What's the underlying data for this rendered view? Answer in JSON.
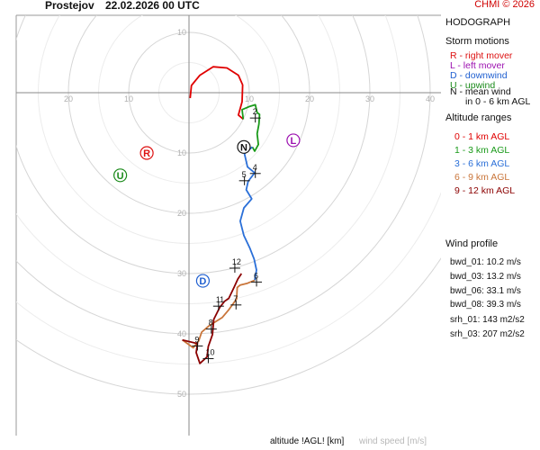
{
  "header": {
    "location": "Prostejov",
    "datetime": "22.02.2026 00 UTC",
    "brand": "CHMI © 2026"
  },
  "panel": {
    "title": "HODOGRAPH",
    "storm_motions": {
      "heading": "Storm motions",
      "items": [
        {
          "text": "R - right mover",
          "color": "#dd1010"
        },
        {
          "text": "L - left mover",
          "color": "#9c10b0"
        },
        {
          "text": "D - downwind",
          "color": "#1f5fd0"
        },
        {
          "text": "U - upwind",
          "color": "#1a8a1a"
        },
        {
          "text": "N - mean wind",
          "color": "#111111"
        },
        {
          "text": "in 0 - 6 km AGL",
          "color": "#111111"
        }
      ]
    },
    "altitude_ranges": {
      "heading": "Altitude ranges",
      "items": [
        {
          "text": "0 - 1 km AGL",
          "color": "#e00000"
        },
        {
          "text": "1 - 3 km AGL",
          "color": "#1a9a1a"
        },
        {
          "text": "3 - 6 km AGL",
          "color": "#2a6fd8"
        },
        {
          "text": "6 - 9 km AGL",
          "color": "#c9753a"
        },
        {
          "text": "9 - 12 km AGL",
          "color": "#8b0000"
        }
      ]
    },
    "wind_profile": {
      "heading": "Wind profile",
      "items": [
        "bwd_01: 10.2 m/s",
        "bwd_03: 13.2 m/s",
        "bwd_06: 33.1 m/s",
        "bwd_08: 39.3 m/s",
        "srh_01: 143 m2/s2",
        "srh_03: 207 m2/s2"
      ]
    }
  },
  "footer": {
    "altitude_label": "altitude !AGL! [km]",
    "windspeed_label": "wind speed [m/s]"
  },
  "chart_data": {
    "type": "hodograph",
    "rings_ms": [
      10,
      20,
      30,
      40,
      50
    ],
    "tick_labels": {
      "x_axis": [
        "20",
        "10",
        "10",
        "20",
        "30",
        "40"
      ],
      "y_axis": [
        "10",
        "10",
        "20",
        "30",
        "40",
        "50"
      ]
    },
    "segments": [
      {
        "range": "0 - 1 km AGL",
        "color": "#e00000",
        "points": [
          [
            0.2,
            -0.9
          ],
          [
            0.4,
            1.2
          ],
          [
            1.8,
            2.9
          ],
          [
            4.0,
            4.3
          ],
          [
            6.3,
            4.1
          ],
          [
            8.2,
            2.9
          ],
          [
            8.9,
            1.3
          ],
          [
            8.8,
            -1.5
          ],
          [
            8.2,
            -3.7
          ],
          [
            9.0,
            -4.4
          ]
        ]
      },
      {
        "range": "1 - 3 km AGL",
        "color": "#1a9a1a",
        "points": [
          [
            9.0,
            -4.4
          ],
          [
            8.8,
            -2.8
          ],
          [
            10.0,
            -2.3
          ],
          [
            11.0,
            -2.0
          ],
          [
            11.3,
            -3.3
          ],
          [
            11.7,
            -3.6
          ],
          [
            11.6,
            -5.2
          ],
          [
            11.3,
            -6.8
          ],
          [
            11.5,
            -8.6
          ],
          [
            10.9,
            -9.7
          ],
          [
            10.5,
            -9.0
          ]
        ]
      },
      {
        "range": "3 - 6 km AGL",
        "color": "#2a6fd8",
        "points": [
          [
            10.5,
            -9.0
          ],
          [
            9.2,
            -10.1
          ],
          [
            9.7,
            -12.3
          ],
          [
            10.9,
            -13.3
          ],
          [
            9.8,
            -14.7
          ],
          [
            9.5,
            -16.1
          ],
          [
            10.4,
            -17.6
          ],
          [
            9.1,
            -19.1
          ],
          [
            8.5,
            -21.3
          ],
          [
            9.1,
            -23.7
          ],
          [
            10.1,
            -25.8
          ],
          [
            10.8,
            -27.6
          ],
          [
            11.2,
            -29.4
          ],
          [
            10.9,
            -31.1
          ]
        ]
      },
      {
        "range": "6 - 9 km AGL",
        "color": "#c9753a",
        "points": [
          [
            10.9,
            -31.1
          ],
          [
            9.7,
            -31.6
          ],
          [
            8.5,
            -31.9
          ],
          [
            8.0,
            -32.3
          ],
          [
            7.9,
            -34.2
          ],
          [
            6.6,
            -36.0
          ],
          [
            5.5,
            -37.3
          ],
          [
            3.4,
            -38.6
          ],
          [
            2.1,
            -39.7
          ],
          [
            1.6,
            -41.2
          ],
          [
            0.7,
            -42.3
          ],
          [
            -1.1,
            -41.0
          ]
        ]
      },
      {
        "range": "9 - 12 km AGL",
        "color": "#8b0000",
        "points": [
          [
            -1.1,
            -41.0
          ],
          [
            1.4,
            -41.6
          ],
          [
            1.2,
            -43.1
          ],
          [
            1.8,
            -44.9
          ],
          [
            3.0,
            -43.8
          ],
          [
            3.2,
            -42.1
          ],
          [
            3.9,
            -40.1
          ],
          [
            4.1,
            -37.6
          ],
          [
            5.1,
            -35.6
          ],
          [
            5.9,
            -34.6
          ],
          [
            6.6,
            -34.1
          ],
          [
            7.5,
            -32.2
          ],
          [
            8.1,
            -30.9
          ],
          [
            8.7,
            -30.0
          ]
        ]
      }
    ],
    "height_marks_km": [
      {
        "label": "2",
        "u": 11.0,
        "v": -4.2
      },
      {
        "label": "4",
        "u": 11.0,
        "v": -13.4
      },
      {
        "label": "5",
        "u": 9.2,
        "v": -14.6
      },
      {
        "label": "6",
        "u": 11.2,
        "v": -31.4
      },
      {
        "label": "7",
        "u": 7.8,
        "v": -35.2
      },
      {
        "label": "8",
        "u": 3.7,
        "v": -39.2
      },
      {
        "label": "9",
        "u": 1.4,
        "v": -42.0
      },
      {
        "label": "10",
        "u": 3.2,
        "v": -44.1
      },
      {
        "label": "11",
        "u": 4.9,
        "v": -35.4
      },
      {
        "label": "12",
        "u": 7.6,
        "v": -29.1
      }
    ],
    "storm_motions": [
      {
        "label": "R",
        "u": -7.0,
        "v": -10.0,
        "color": "#dd1010"
      },
      {
        "label": "L",
        "u": 17.3,
        "v": -7.9,
        "color": "#9c10b0"
      },
      {
        "label": "D",
        "u": 2.3,
        "v": -31.2,
        "color": "#1f5fd0"
      },
      {
        "label": "U",
        "u": -11.4,
        "v": -13.7,
        "color": "#1a8a1a"
      },
      {
        "label": "N",
        "u": 9.1,
        "v": -9.0,
        "color": "#111111"
      }
    ]
  }
}
